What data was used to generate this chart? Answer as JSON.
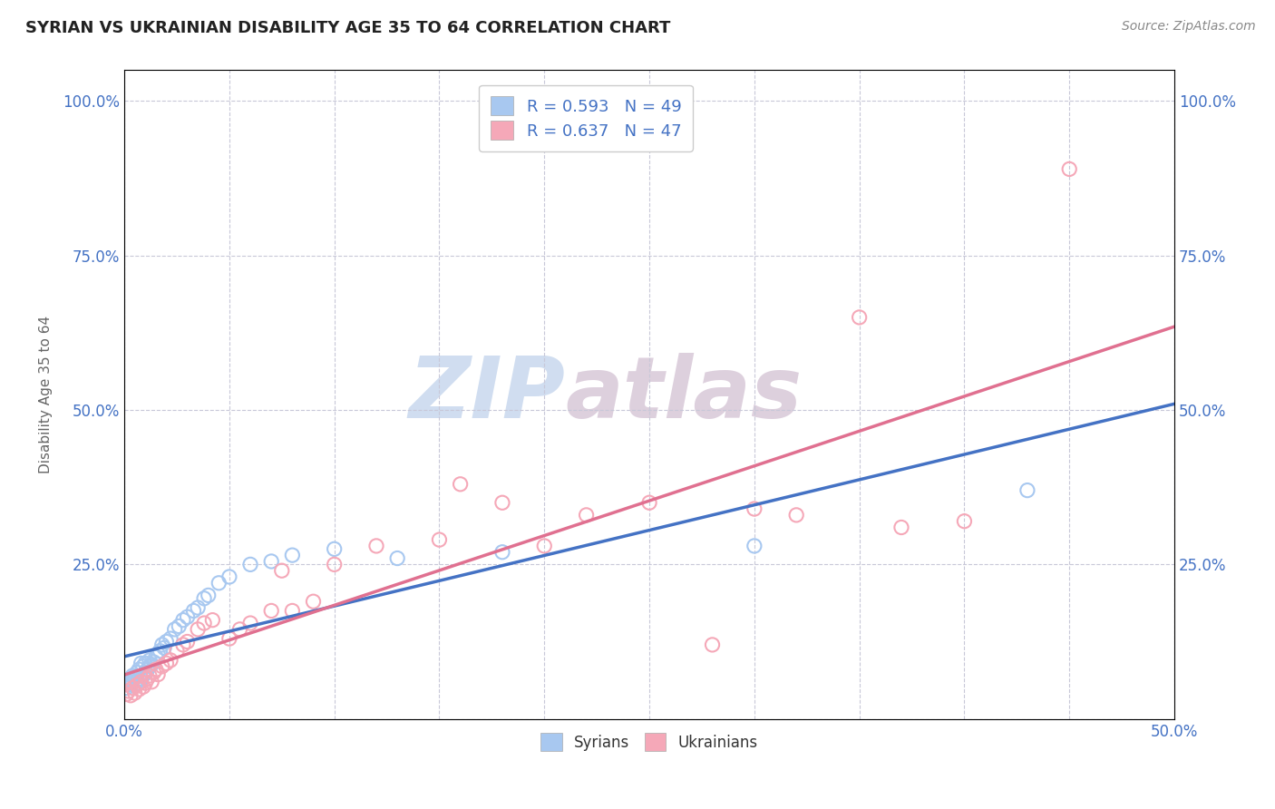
{
  "title": "SYRIAN VS UKRAINIAN DISABILITY AGE 35 TO 64 CORRELATION CHART",
  "source": "Source: ZipAtlas.com",
  "ylabel": "Disability Age 35 to 64",
  "xlim": [
    0.0,
    0.5
  ],
  "ylim": [
    0.0,
    1.05
  ],
  "syrians_R": 0.593,
  "syrians_N": 49,
  "ukrainians_R": 0.637,
  "ukrainians_N": 47,
  "syrians_color": "#a8c8f0",
  "ukrainians_color": "#f5a8b8",
  "regression_syrians_color": "#4472c4",
  "regression_ukrainians_color": "#e07090",
  "syrians_x": [
    0.001,
    0.002,
    0.002,
    0.003,
    0.003,
    0.004,
    0.004,
    0.005,
    0.005,
    0.006,
    0.006,
    0.007,
    0.007,
    0.008,
    0.008,
    0.009,
    0.009,
    0.01,
    0.01,
    0.011,
    0.012,
    0.012,
    0.013,
    0.014,
    0.015,
    0.016,
    0.017,
    0.018,
    0.019,
    0.02,
    0.022,
    0.024,
    0.026,
    0.028,
    0.03,
    0.033,
    0.035,
    0.038,
    0.04,
    0.045,
    0.05,
    0.06,
    0.07,
    0.08,
    0.1,
    0.13,
    0.18,
    0.3,
    0.43
  ],
  "syrians_y": [
    0.05,
    0.055,
    0.06,
    0.058,
    0.065,
    0.06,
    0.07,
    0.055,
    0.068,
    0.062,
    0.075,
    0.058,
    0.08,
    0.065,
    0.09,
    0.07,
    0.085,
    0.075,
    0.09,
    0.08,
    0.085,
    0.095,
    0.088,
    0.092,
    0.1,
    0.105,
    0.11,
    0.12,
    0.115,
    0.125,
    0.13,
    0.145,
    0.15,
    0.16,
    0.165,
    0.175,
    0.18,
    0.195,
    0.2,
    0.22,
    0.23,
    0.25,
    0.255,
    0.265,
    0.275,
    0.26,
    0.27,
    0.28,
    0.37
  ],
  "ukrainians_x": [
    0.001,
    0.002,
    0.003,
    0.004,
    0.005,
    0.006,
    0.007,
    0.008,
    0.009,
    0.01,
    0.011,
    0.012,
    0.013,
    0.014,
    0.015,
    0.016,
    0.018,
    0.02,
    0.022,
    0.025,
    0.028,
    0.03,
    0.035,
    0.038,
    0.042,
    0.05,
    0.055,
    0.06,
    0.07,
    0.075,
    0.08,
    0.09,
    0.1,
    0.12,
    0.15,
    0.16,
    0.18,
    0.2,
    0.22,
    0.25,
    0.28,
    0.3,
    0.32,
    0.35,
    0.37,
    0.4,
    0.45
  ],
  "ukrainians_y": [
    0.04,
    0.045,
    0.038,
    0.05,
    0.042,
    0.055,
    0.048,
    0.06,
    0.052,
    0.058,
    0.065,
    0.07,
    0.06,
    0.075,
    0.08,
    0.072,
    0.085,
    0.09,
    0.095,
    0.11,
    0.12,
    0.125,
    0.145,
    0.155,
    0.16,
    0.13,
    0.145,
    0.155,
    0.175,
    0.24,
    0.175,
    0.19,
    0.25,
    0.28,
    0.29,
    0.38,
    0.35,
    0.28,
    0.33,
    0.35,
    0.12,
    0.34,
    0.33,
    0.65,
    0.31,
    0.32,
    0.89
  ],
  "background_color": "#ffffff",
  "grid_color": "#c8c8d8",
  "watermark_zip_color": "#c8d8ee",
  "watermark_atlas_color": "#d8c8d8"
}
